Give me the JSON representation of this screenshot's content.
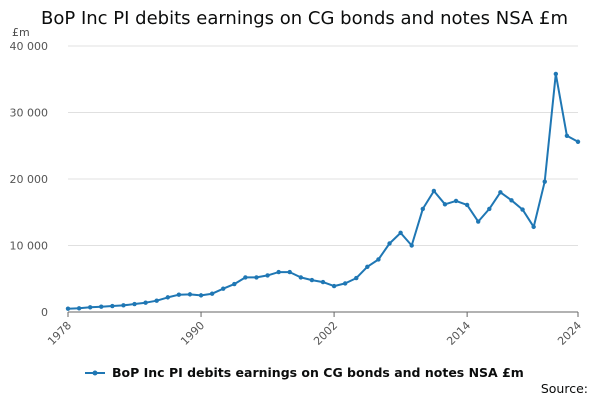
{
  "title": "BoP Inc PI debits earnings on CG bonds and notes NSA £m",
  "unit_label": "£m",
  "source_label": "Source:",
  "colors": {
    "series": "#1f77b4",
    "grid": "#e0e0e0",
    "axis": "#666666"
  },
  "chart_data": {
    "type": "line",
    "title": "BoP Inc PI debits earnings on CG bonds and notes NSA £m",
    "ylabel": "£m",
    "xlabel": "",
    "xlim": [
      1978,
      2024
    ],
    "ylim": [
      0,
      40000
    ],
    "x_ticks": [
      "1978",
      "1990",
      "2002",
      "2014",
      "2024"
    ],
    "y_ticks": [
      {
        "value": 0,
        "label": "0"
      },
      {
        "value": 10000,
        "label": "10 000"
      },
      {
        "value": 20000,
        "label": "20 000"
      },
      {
        "value": 30000,
        "label": "30 000"
      },
      {
        "value": 40000,
        "label": "40 000"
      }
    ],
    "grid": true,
    "legend_position": "bottom",
    "series": [
      {
        "name": "BoP Inc PI debits earnings on CG bonds and notes NSA £m",
        "x": [
          1978,
          1979,
          1980,
          1981,
          1982,
          1983,
          1984,
          1985,
          1986,
          1987,
          1988,
          1989,
          1990,
          1991,
          1992,
          1993,
          1994,
          1995,
          1996,
          1997,
          1998,
          1999,
          2000,
          2001,
          2002,
          2003,
          2004,
          2005,
          2006,
          2007,
          2008,
          2009,
          2010,
          2011,
          2012,
          2013,
          2014,
          2015,
          2016,
          2017,
          2018,
          2019,
          2020,
          2021,
          2022,
          2023,
          2024
        ],
        "values": [
          500,
          550,
          700,
          800,
          900,
          1000,
          1200,
          1400,
          1700,
          2200,
          2600,
          2650,
          2500,
          2750,
          3500,
          4200,
          5200,
          5200,
          5500,
          6000,
          6000,
          5200,
          4800,
          4500,
          3900,
          4300,
          5100,
          6800,
          7900,
          10300,
          11900,
          10000,
          15500,
          18200,
          16200,
          16700,
          16100,
          13600,
          15500,
          18000,
          16800,
          15400,
          12800,
          19600,
          35800,
          26500,
          25600
        ]
      }
    ]
  }
}
